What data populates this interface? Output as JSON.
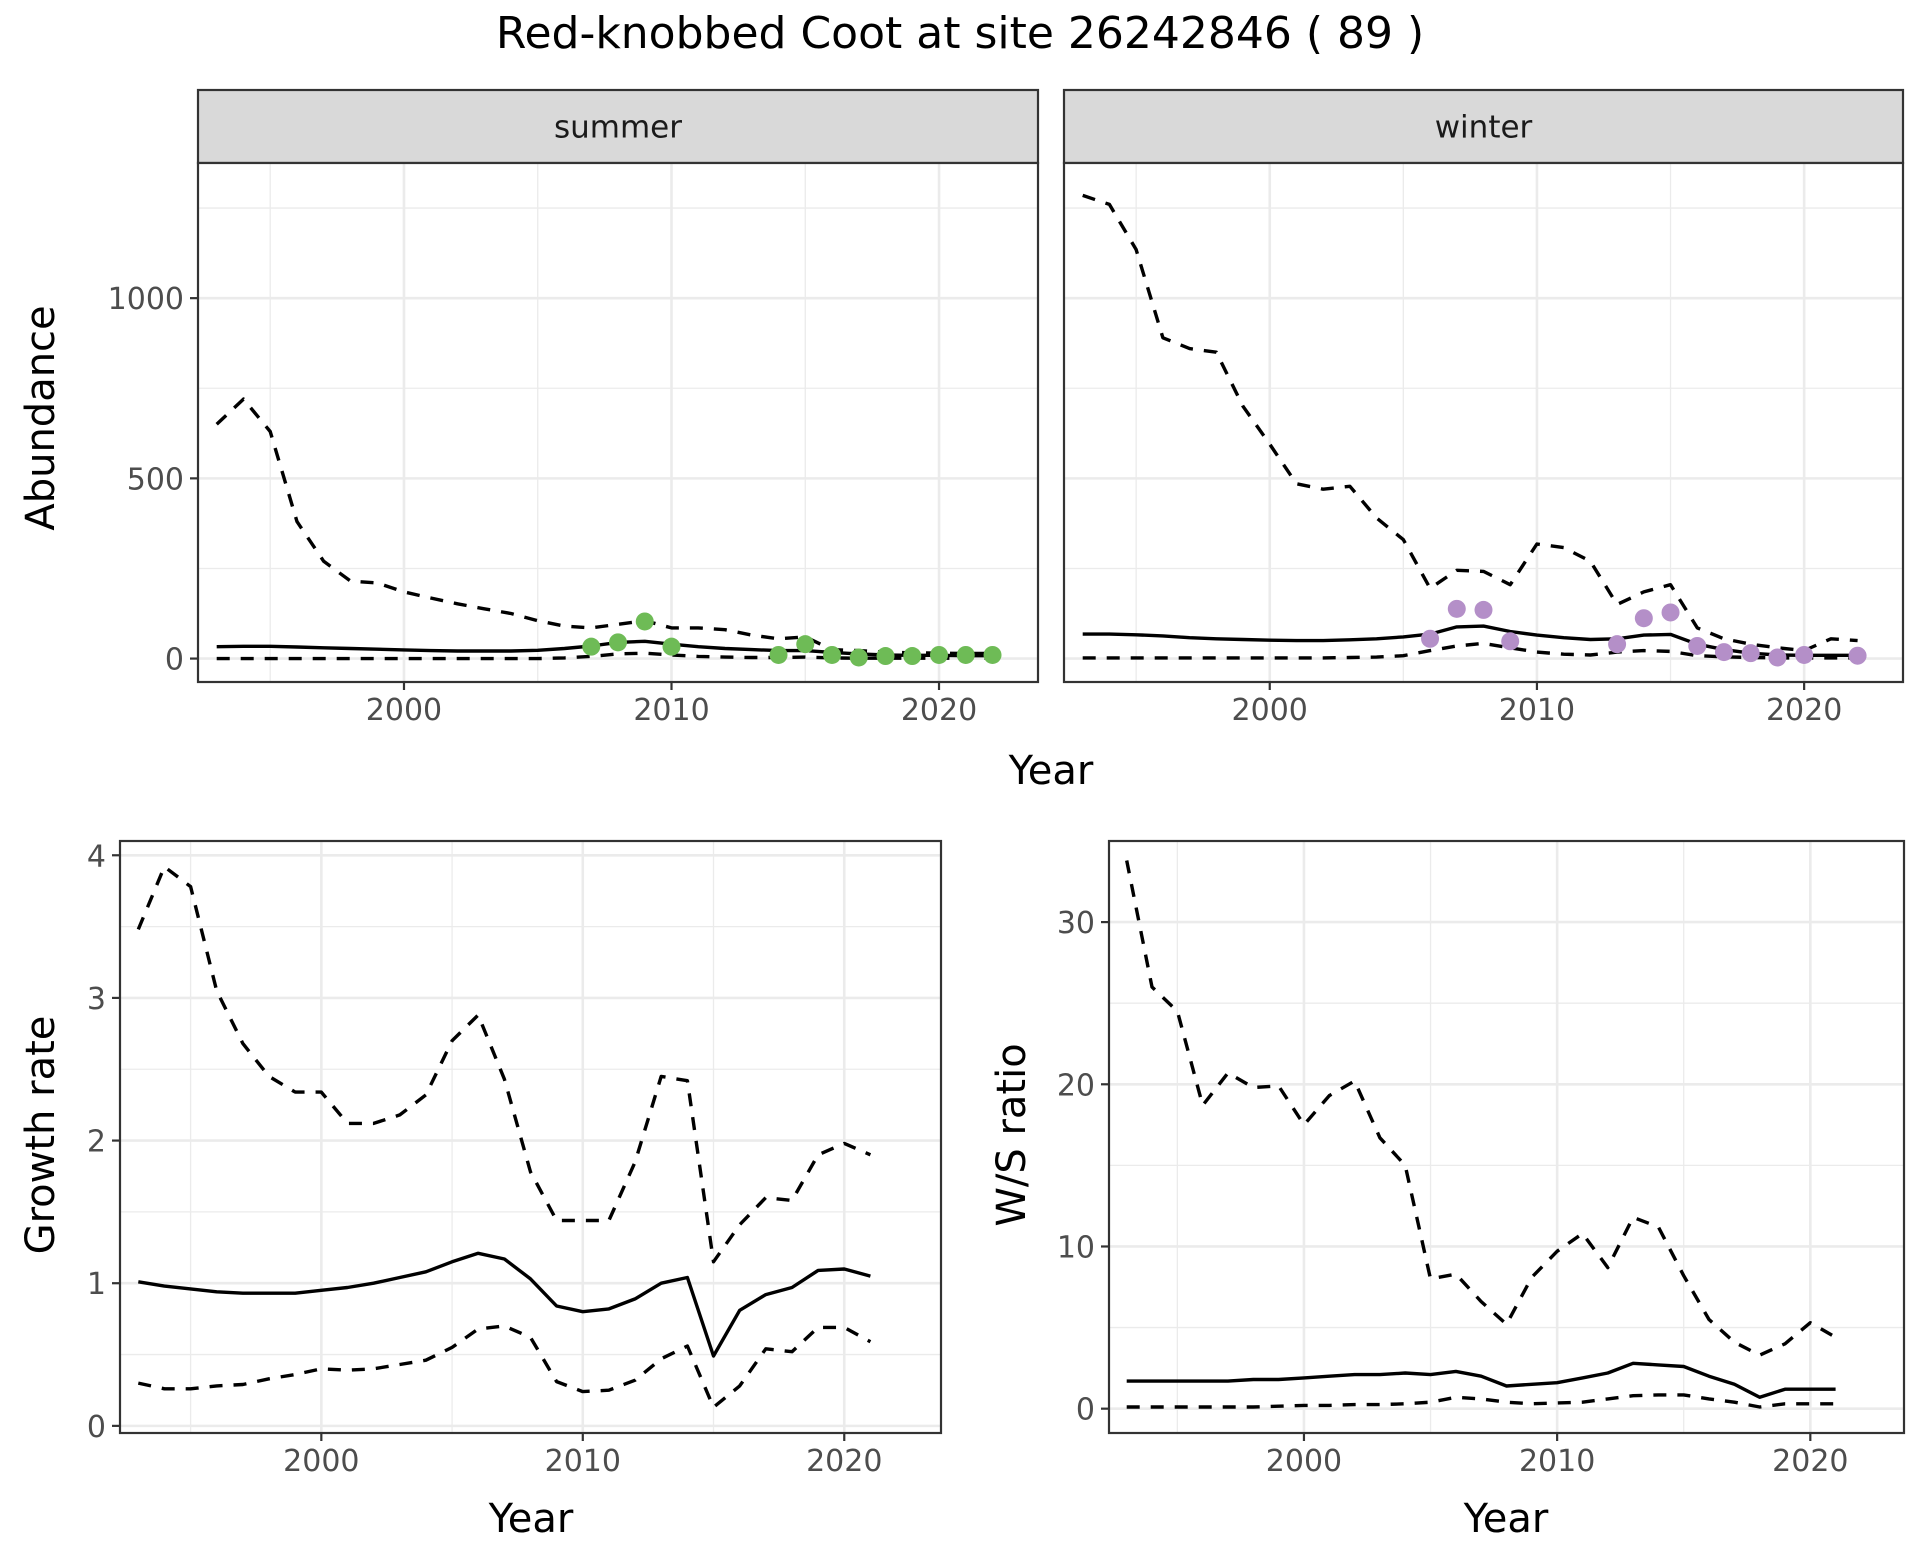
{
  "title": "Red-knobbed Coot at site 26242846 ( 89 )",
  "colors": {
    "summer": "#6ebb56",
    "winter": "#b48fc8",
    "line": "#000000"
  },
  "chart_data": [
    {
      "type": "line",
      "facet": "summer",
      "xlabel": "Year",
      "ylabel": "Abundance",
      "xlim": [
        1992.3,
        2023.7
      ],
      "ylim": [
        -65,
        1375
      ],
      "xticks": [
        2000,
        2010,
        2020
      ],
      "yticks": [
        0,
        500,
        1000
      ],
      "grid": true,
      "years": [
        1993,
        1994,
        1995,
        1996,
        1997,
        1998,
        1999,
        2000,
        2001,
        2002,
        2003,
        2004,
        2005,
        2006,
        2007,
        2008,
        2009,
        2010,
        2011,
        2012,
        2013,
        2014,
        2015,
        2016,
        2017,
        2018,
        2019,
        2020,
        2021,
        2022
      ],
      "series": [
        {
          "style": "solid",
          "values": [
            33,
            34,
            34,
            32,
            30,
            28,
            26,
            24,
            22,
            21,
            21,
            21,
            23,
            28,
            35,
            45,
            48,
            40,
            33,
            28,
            25,
            22,
            22,
            17,
            13,
            10,
            9,
            9,
            8,
            8
          ]
        },
        {
          "style": "dashed",
          "values": [
            650,
            720,
            630,
            380,
            270,
            215,
            210,
            185,
            168,
            152,
            138,
            125,
            105,
            90,
            85,
            95,
            105,
            85,
            85,
            80,
            65,
            55,
            60,
            25,
            22,
            18,
            16,
            15,
            14,
            14
          ]
        },
        {
          "style": "dashed",
          "values": [
            0,
            0,
            0,
            0,
            0,
            0,
            0,
            0,
            0,
            0,
            0,
            0,
            0,
            2,
            6,
            13,
            15,
            10,
            6,
            4,
            3,
            3,
            4,
            2,
            1,
            1,
            1,
            1,
            1,
            1
          ]
        }
      ],
      "points": {
        "x": [
          2007,
          2008,
          2009,
          2010,
          2014,
          2015,
          2016,
          2017,
          2018,
          2019,
          2020,
          2021,
          2022
        ],
        "y": [
          33,
          45,
          103,
          33,
          10,
          40,
          10,
          3,
          7,
          7,
          10,
          10,
          10
        ]
      }
    },
    {
      "type": "line",
      "facet": "winter",
      "xlabel": "Year",
      "ylabel": "Abundance",
      "xlim": [
        1992.3,
        2023.7
      ],
      "ylim": [
        -65,
        1375
      ],
      "xticks": [
        2000,
        2010,
        2020
      ],
      "yticks": [
        0,
        500,
        1000
      ],
      "grid": true,
      "years": [
        1993,
        1994,
        1995,
        1996,
        1997,
        1998,
        1999,
        2000,
        2001,
        2002,
        2003,
        2004,
        2005,
        2006,
        2007,
        2008,
        2009,
        2010,
        2011,
        2012,
        2013,
        2014,
        2015,
        2016,
        2017,
        2018,
        2019,
        2020,
        2021,
        2022
      ],
      "series": [
        {
          "style": "solid",
          "values": [
            68,
            68,
            66,
            63,
            58,
            55,
            53,
            51,
            50,
            50,
            52,
            55,
            60,
            68,
            88,
            90,
            75,
            65,
            58,
            53,
            55,
            65,
            67,
            40,
            25,
            15,
            10,
            9,
            9,
            9
          ]
        },
        {
          "style": "dashed",
          "values": [
            1285,
            1260,
            1135,
            890,
            860,
            850,
            700,
            595,
            485,
            470,
            478,
            390,
            330,
            195,
            245,
            242,
            205,
            318,
            308,
            270,
            150,
            185,
            205,
            85,
            55,
            40,
            30,
            22,
            55,
            50
          ]
        },
        {
          "style": "dashed",
          "values": [
            2,
            2,
            2,
            2,
            2,
            2,
            2,
            2,
            2,
            2,
            3,
            4,
            8,
            22,
            35,
            42,
            30,
            18,
            12,
            10,
            18,
            22,
            20,
            8,
            5,
            3,
            2,
            2,
            2,
            2
          ]
        }
      ],
      "points": {
        "x": [
          2006,
          2007,
          2008,
          2009,
          2013,
          2014,
          2015,
          2016,
          2017,
          2018,
          2019,
          2020,
          2022
        ],
        "y": [
          55,
          138,
          135,
          48,
          40,
          112,
          128,
          35,
          18,
          15,
          3,
          10,
          8
        ]
      }
    },
    {
      "type": "line",
      "xlabel": "Year",
      "ylabel": "Growth rate",
      "xlim": [
        1992.3,
        2023.7
      ],
      "ylim": [
        -0.05,
        4.1
      ],
      "xticks": [
        2000,
        2010,
        2020
      ],
      "yticks": [
        0,
        1,
        2,
        3,
        4
      ],
      "grid": true,
      "years": [
        1993,
        1994,
        1995,
        1996,
        1997,
        1998,
        1999,
        2000,
        2001,
        2002,
        2003,
        2004,
        2005,
        2006,
        2007,
        2008,
        2009,
        2010,
        2011,
        2012,
        2013,
        2014,
        2015,
        2016,
        2017,
        2018,
        2019,
        2020,
        2021
      ],
      "series": [
        {
          "style": "solid",
          "values": [
            1.01,
            0.98,
            0.96,
            0.94,
            0.93,
            0.93,
            0.93,
            0.95,
            0.97,
            1.0,
            1.04,
            1.08,
            1.15,
            1.21,
            1.17,
            1.03,
            0.84,
            0.8,
            0.82,
            0.89,
            1.0,
            1.04,
            0.49,
            0.81,
            0.92,
            0.97,
            1.09,
            1.1,
            1.05
          ]
        },
        {
          "style": "dashed",
          "values": [
            3.48,
            3.92,
            3.78,
            3.05,
            2.68,
            2.45,
            2.34,
            2.34,
            2.12,
            2.12,
            2.18,
            2.32,
            2.7,
            2.88,
            2.43,
            1.78,
            1.44,
            1.44,
            1.44,
            1.85,
            2.45,
            2.42,
            1.15,
            1.41,
            1.6,
            1.58,
            1.9,
            1.98,
            1.9
          ]
        },
        {
          "style": "dashed",
          "values": [
            0.3,
            0.26,
            0.26,
            0.28,
            0.29,
            0.33,
            0.36,
            0.4,
            0.39,
            0.4,
            0.43,
            0.46,
            0.55,
            0.68,
            0.7,
            0.62,
            0.31,
            0.24,
            0.25,
            0.32,
            0.47,
            0.56,
            0.13,
            0.28,
            0.54,
            0.52,
            0.69,
            0.69,
            0.59
          ]
        }
      ]
    },
    {
      "type": "line",
      "xlabel": "Year",
      "ylabel": "W/S ratio",
      "xlim": [
        1992.3,
        2023.7
      ],
      "ylim": [
        -1.5,
        35
      ],
      "xticks": [
        2000,
        2010,
        2020
      ],
      "yticks": [
        0,
        10,
        20,
        30
      ],
      "grid": true,
      "years": [
        1993,
        1994,
        1995,
        1996,
        1997,
        1998,
        1999,
        2000,
        2001,
        2002,
        2003,
        2004,
        2005,
        2006,
        2007,
        2008,
        2009,
        2010,
        2011,
        2012,
        2013,
        2014,
        2015,
        2016,
        2017,
        2018,
        2019,
        2020,
        2021
      ],
      "series": [
        {
          "style": "solid",
          "values": [
            1.7,
            1.7,
            1.7,
            1.7,
            1.7,
            1.8,
            1.8,
            1.9,
            2.0,
            2.1,
            2.1,
            2.2,
            2.1,
            2.3,
            2.0,
            1.4,
            1.5,
            1.6,
            1.9,
            2.2,
            2.8,
            2.7,
            2.6,
            2.0,
            1.5,
            0.7,
            1.2,
            1.2,
            1.2
          ]
        },
        {
          "style": "dashed",
          "values": [
            33.8,
            26.0,
            24.5,
            18.7,
            20.7,
            19.8,
            19.9,
            17.5,
            19.3,
            20.2,
            16.7,
            15.0,
            8.0,
            8.3,
            6.6,
            5.2,
            8.1,
            9.7,
            10.8,
            8.7,
            11.8,
            11.2,
            8.2,
            5.5,
            4.1,
            3.3,
            4.0,
            5.3,
            4.4
          ]
        },
        {
          "style": "dashed",
          "values": [
            0.1,
            0.1,
            0.1,
            0.1,
            0.1,
            0.1,
            0.15,
            0.2,
            0.2,
            0.25,
            0.25,
            0.3,
            0.4,
            0.7,
            0.6,
            0.4,
            0.3,
            0.35,
            0.4,
            0.6,
            0.8,
            0.85,
            0.85,
            0.6,
            0.4,
            0.1,
            0.3,
            0.3,
            0.3
          ]
        }
      ]
    }
  ]
}
